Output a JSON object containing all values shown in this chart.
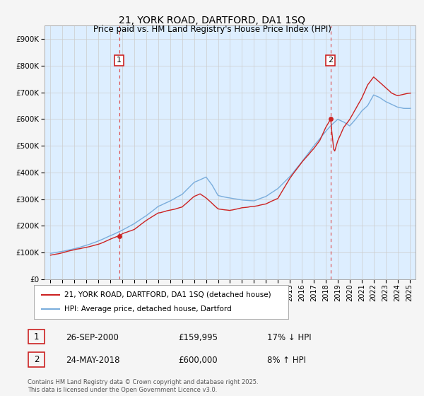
{
  "title": "21, YORK ROAD, DARTFORD, DA1 1SQ",
  "subtitle": "Price paid vs. HM Land Registry's House Price Index (HPI)",
  "ytick_values": [
    0,
    100000,
    200000,
    300000,
    400000,
    500000,
    600000,
    700000,
    800000,
    900000
  ],
  "ylim": [
    0,
    950000
  ],
  "xlim_year": [
    1994.5,
    2025.5
  ],
  "marker1_year": 2000.73,
  "marker2_year": 2018.39,
  "marker1_price": 159995,
  "marker2_price": 600000,
  "legend_line1": "21, YORK ROAD, DARTFORD, DA1 1SQ (detached house)",
  "legend_line2": "HPI: Average price, detached house, Dartford",
  "annotation1_num": "1",
  "annotation1_date": "26-SEP-2000",
  "annotation1_price": "£159,995",
  "annotation1_hpi": "17% ↓ HPI",
  "annotation2_num": "2",
  "annotation2_date": "24-MAY-2018",
  "annotation2_price": "£600,000",
  "annotation2_hpi": "8% ↑ HPI",
  "footer": "Contains HM Land Registry data © Crown copyright and database right 2025.\nThis data is licensed under the Open Government Licence v3.0.",
  "hpi_color": "#7aaddc",
  "price_color": "#cc2222",
  "vline_color": "#dd4444",
  "grid_color": "#cccccc",
  "plot_bg_color": "#ddeeff",
  "background_color": "#f5f5f5",
  "legend_box_color": "#ffffff",
  "box_label_color": "#cc2222",
  "key_years_hpi": [
    1995,
    1995.5,
    1996,
    1997,
    1998,
    1999,
    2000,
    2001,
    2002,
    2003,
    2004,
    2005,
    2006,
    2007,
    2008,
    2008.5,
    2009,
    2010,
    2011,
    2012,
    2013,
    2014,
    2015,
    2016,
    2017,
    2018,
    2018.39,
    2019,
    2019.5,
    2020,
    2020.5,
    2021,
    2021.5,
    2022,
    2022.5,
    2023,
    2023.5,
    2024,
    2024.5,
    2025
  ],
  "key_hpi_vals": [
    97000,
    100000,
    104000,
    115000,
    128000,
    145000,
    165000,
    185000,
    210000,
    240000,
    275000,
    295000,
    320000,
    365000,
    385000,
    355000,
    315000,
    305000,
    298000,
    295000,
    310000,
    340000,
    385000,
    440000,
    500000,
    555000,
    575000,
    600000,
    590000,
    575000,
    600000,
    630000,
    650000,
    690000,
    680000,
    665000,
    655000,
    645000,
    640000,
    640000
  ],
  "key_years_prop": [
    1995,
    1995.5,
    1996,
    1997,
    1998,
    1999,
    2000,
    2000.73,
    2001,
    2002,
    2003,
    2004,
    2005,
    2006,
    2007,
    2007.5,
    2008,
    2008.5,
    2009,
    2010,
    2011,
    2012,
    2013,
    2014,
    2015,
    2016,
    2017,
    2017.5,
    2018,
    2018.39,
    2018.7,
    2019,
    2019.5,
    2020,
    2020.5,
    2021,
    2021.5,
    2022,
    2022.5,
    2023,
    2023.5,
    2024,
    2024.5,
    2025
  ],
  "key_prop_vals": [
    90000,
    94000,
    98000,
    110000,
    118000,
    130000,
    148000,
    159995,
    168000,
    185000,
    220000,
    248000,
    258000,
    270000,
    310000,
    320000,
    305000,
    285000,
    265000,
    260000,
    270000,
    275000,
    285000,
    305000,
    380000,
    440000,
    490000,
    520000,
    570000,
    600000,
    475000,
    520000,
    570000,
    600000,
    640000,
    680000,
    730000,
    760000,
    740000,
    720000,
    700000,
    690000,
    695000,
    700000
  ]
}
